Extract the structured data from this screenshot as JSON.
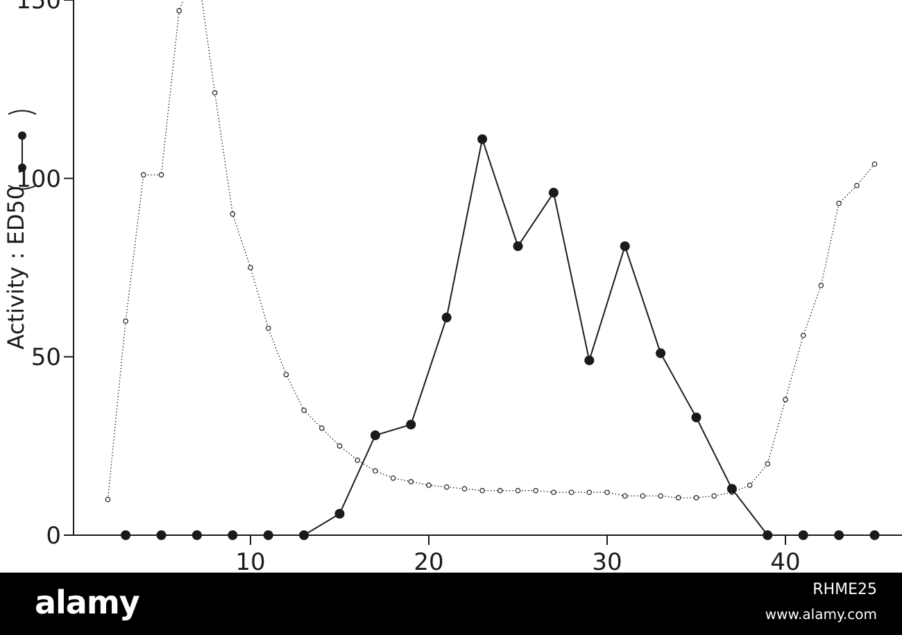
{
  "chart_data": {
    "type": "line",
    "title": "",
    "xlabel": "",
    "ylabel": "Activity : ED50",
    "x_ticks": [
      "10",
      "20",
      "30",
      "40"
    ],
    "y_ticks": [
      "0",
      "50",
      "100",
      "150"
    ],
    "xlim": [
      1,
      46
    ],
    "ylim": [
      0,
      150
    ],
    "grid": false,
    "series": [
      {
        "key": "activity",
        "style": "solid-filled-markers",
        "x": [
          3,
          5,
          7,
          9,
          11,
          13,
          15,
          17,
          19,
          21,
          23,
          25,
          27,
          29,
          31,
          33,
          35,
          37,
          39,
          41,
          43,
          45
        ],
        "values": [
          0,
          0,
          0,
          0,
          0,
          0,
          6,
          28,
          31,
          61,
          111,
          81,
          96,
          49,
          81,
          51,
          33,
          13,
          0,
          0,
          0,
          0
        ]
      },
      {
        "key": "secondary",
        "style": "dotted-open-markers",
        "x": [
          2,
          3,
          4,
          5,
          6,
          7,
          8,
          9,
          10,
          11,
          12,
          13,
          14,
          15,
          16,
          17,
          18,
          19,
          20,
          21,
          22,
          23,
          24,
          25,
          26,
          27,
          28,
          29,
          30,
          31,
          32,
          33,
          34,
          35,
          36,
          37,
          38,
          39,
          40,
          41,
          42,
          43,
          44,
          45
        ],
        "values": [
          10,
          60,
          101,
          101,
          147,
          160,
          124,
          90,
          75,
          58,
          45,
          35,
          30,
          25,
          21,
          18,
          16,
          15,
          14,
          13.5,
          13,
          12.5,
          12.5,
          12.5,
          12.5,
          12,
          12,
          12,
          12,
          11,
          11,
          11,
          10.5,
          10.5,
          11,
          12,
          14,
          20,
          38,
          56,
          70,
          93,
          98,
          104
        ]
      }
    ]
  },
  "footer": {
    "brand": "alamy",
    "image_id": "RHME25",
    "url": "www.alamy.com"
  },
  "colors": {
    "ink": "#1a1a1a",
    "footer_bg": "#000000",
    "footer_text": "#ffffff"
  }
}
